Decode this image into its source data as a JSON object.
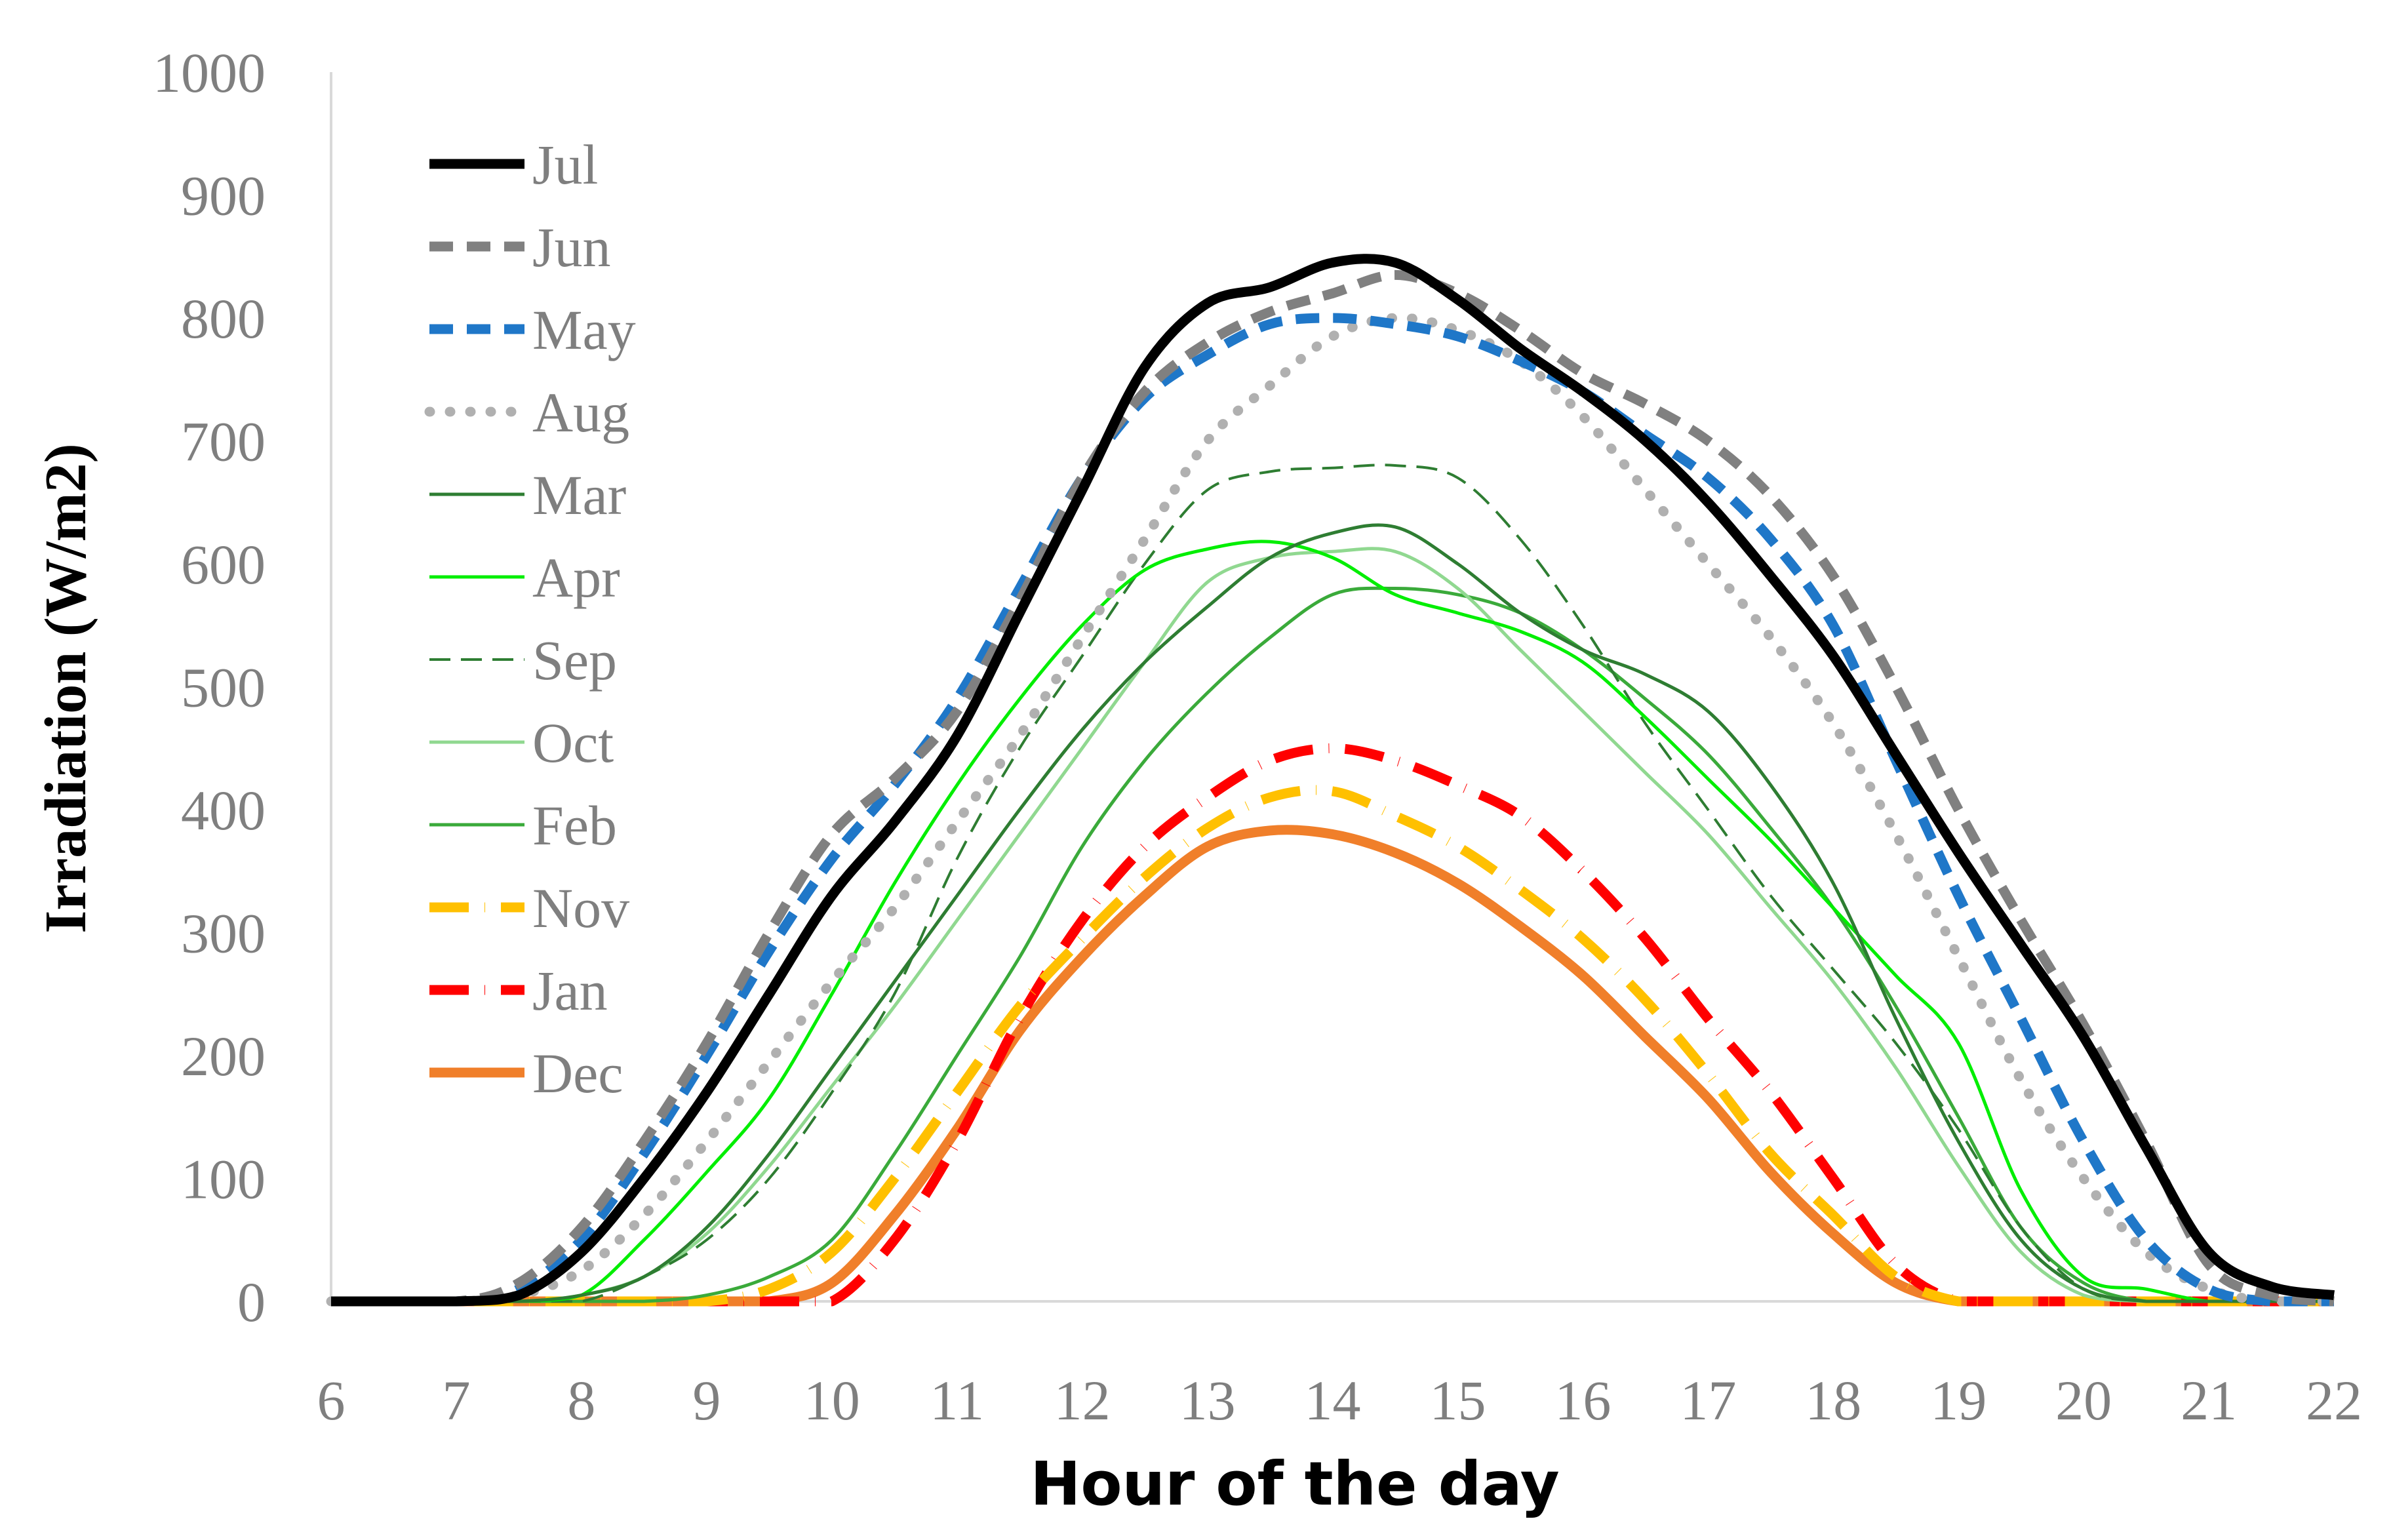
{
  "chart_data": {
    "type": "line",
    "title": "",
    "xlabel": "Hour of the day",
    "ylabel": "Irradiation (W/m2)",
    "xlim": [
      6,
      22
    ],
    "ylim": [
      0,
      1000
    ],
    "xticks": [
      "6",
      "7",
      "8",
      "9",
      "10",
      "11",
      "12",
      "13",
      "14",
      "15",
      "16",
      "17",
      "18",
      "19",
      "20",
      "21",
      "22"
    ],
    "yticks": [
      "0",
      "100",
      "200",
      "300",
      "400",
      "500",
      "600",
      "700",
      "800",
      "900",
      "1000"
    ],
    "grid": false,
    "legend_position": "top-left",
    "x": [
      6,
      7,
      7.5,
      8,
      8.5,
      9,
      9.5,
      10,
      10.5,
      11,
      11.5,
      12,
      12.5,
      13,
      13.5,
      14,
      14.5,
      15,
      15.5,
      16,
      16.5,
      17,
      17.5,
      18,
      18.5,
      19,
      19.5,
      20,
      20.5,
      21,
      21.5,
      22
    ],
    "series": [
      {
        "name": "Jul",
        "color": "#000000",
        "dash": "solid",
        "width": 15,
        "values": [
          0,
          0,
          5,
          40,
          100,
          170,
          250,
          330,
          390,
          460,
          560,
          660,
          760,
          812,
          825,
          845,
          845,
          815,
          775,
          740,
          700,
          650,
          590,
          525,
          445,
          365,
          290,
          215,
          125,
          40,
          12,
          5
        ]
      },
      {
        "name": "Jun",
        "color": "#808080",
        "dash": "dash",
        "width": 15,
        "values": [
          0,
          0,
          15,
          60,
          130,
          210,
          300,
          380,
          425,
          480,
          570,
          670,
          740,
          780,
          805,
          820,
          835,
          820,
          790,
          755,
          730,
          700,
          655,
          590,
          500,
          400,
          310,
          225,
          130,
          30,
          5,
          0
        ]
      },
      {
        "name": "May",
        "color": "#1f77c8",
        "dash": "dash",
        "width": 15,
        "values": [
          0,
          0,
          10,
          50,
          120,
          200,
          285,
          360,
          420,
          490,
          580,
          670,
          735,
          770,
          795,
          800,
          795,
          785,
          765,
          740,
          705,
          670,
          620,
          550,
          440,
          330,
          230,
          130,
          50,
          10,
          0,
          0
        ]
      },
      {
        "name": "Aug",
        "color": "#b0b0b0",
        "dash": "dot",
        "width": 15,
        "values": [
          0,
          0,
          5,
          25,
          70,
          130,
          195,
          260,
          320,
          390,
          460,
          540,
          620,
          700,
          745,
          785,
          800,
          790,
          765,
          720,
          660,
          600,
          540,
          470,
          380,
          280,
          180,
          100,
          40,
          10,
          0,
          0
        ]
      },
      {
        "name": "Mar",
        "color": "#2e7d32",
        "dash": "solid",
        "width": 5,
        "values": [
          0,
          0,
          0,
          5,
          20,
          60,
          120,
          190,
          260,
          330,
          400,
          465,
          520,
          565,
          605,
          625,
          630,
          600,
          560,
          530,
          510,
          480,
          420,
          340,
          230,
          130,
          50,
          10,
          0,
          0,
          0,
          0
        ]
      },
      {
        "name": "Apr",
        "color": "#00ee00",
        "dash": "solid",
        "width": 5,
        "values": [
          0,
          0,
          0,
          5,
          50,
          105,
          165,
          250,
          340,
          420,
          490,
          550,
          595,
          612,
          618,
          605,
          575,
          560,
          545,
          520,
          475,
          425,
          375,
          320,
          265,
          210,
          90,
          20,
          10,
          0,
          0,
          0
        ]
      },
      {
        "name": "Sep",
        "color": "#2e7d32",
        "dash": "longdash",
        "width": 4,
        "values": [
          0,
          0,
          0,
          0,
          20,
          50,
          100,
          170,
          250,
          360,
          450,
          525,
          600,
          660,
          675,
          678,
          680,
          670,
          620,
          550,
          470,
          400,
          330,
          270,
          210,
          140,
          60,
          10,
          0,
          0,
          0,
          0
        ]
      },
      {
        "name": "Oct",
        "color": "#90d890",
        "dash": "solid",
        "width": 5,
        "values": [
          0,
          0,
          0,
          5,
          20,
          55,
          110,
          175,
          240,
          310,
          380,
          450,
          520,
          585,
          605,
          610,
          610,
          580,
          530,
          480,
          430,
          380,
          320,
          260,
          190,
          110,
          40,
          5,
          0,
          0,
          0,
          0
        ]
      },
      {
        "name": "Feb",
        "color": "#3aaa3a",
        "dash": "solid",
        "width": 5,
        "values": [
          0,
          0,
          0,
          0,
          0,
          5,
          20,
          50,
          120,
          200,
          280,
          370,
          440,
          495,
          540,
          575,
          580,
          575,
          560,
          530,
          490,
          445,
          385,
          320,
          240,
          150,
          60,
          15,
          0,
          0,
          0,
          0
        ]
      },
      {
        "name": "Nov",
        "color": "#ffc000",
        "dash": "dashdot",
        "width": 15,
        "values": [
          0,
          0,
          0,
          0,
          0,
          0,
          10,
          40,
          100,
          170,
          240,
          295,
          345,
          385,
          410,
          415,
          395,
          370,
          335,
          295,
          245,
          185,
          120,
          70,
          20,
          0,
          0,
          0,
          0,
          0,
          0,
          0
        ]
      },
      {
        "name": "Jan",
        "color": "#ff0000",
        "dash": "dashdot",
        "width": 15,
        "values": [
          0,
          0,
          0,
          0,
          0,
          0,
          0,
          0,
          50,
          130,
          230,
          310,
          370,
          410,
          440,
          450,
          440,
          420,
          395,
          350,
          295,
          230,
          170,
          100,
          30,
          0,
          0,
          0,
          0,
          0,
          0,
          0
        ]
      },
      {
        "name": "Dec",
        "color": "#f07f2a",
        "dash": "solid",
        "width": 15,
        "values": [
          0,
          0,
          0,
          0,
          0,
          0,
          0,
          15,
          70,
          140,
          220,
          280,
          330,
          370,
          383,
          380,
          365,
          340,
          305,
          265,
          215,
          165,
          105,
          55,
          15,
          0,
          0,
          0,
          0,
          0,
          0,
          0
        ]
      }
    ]
  }
}
